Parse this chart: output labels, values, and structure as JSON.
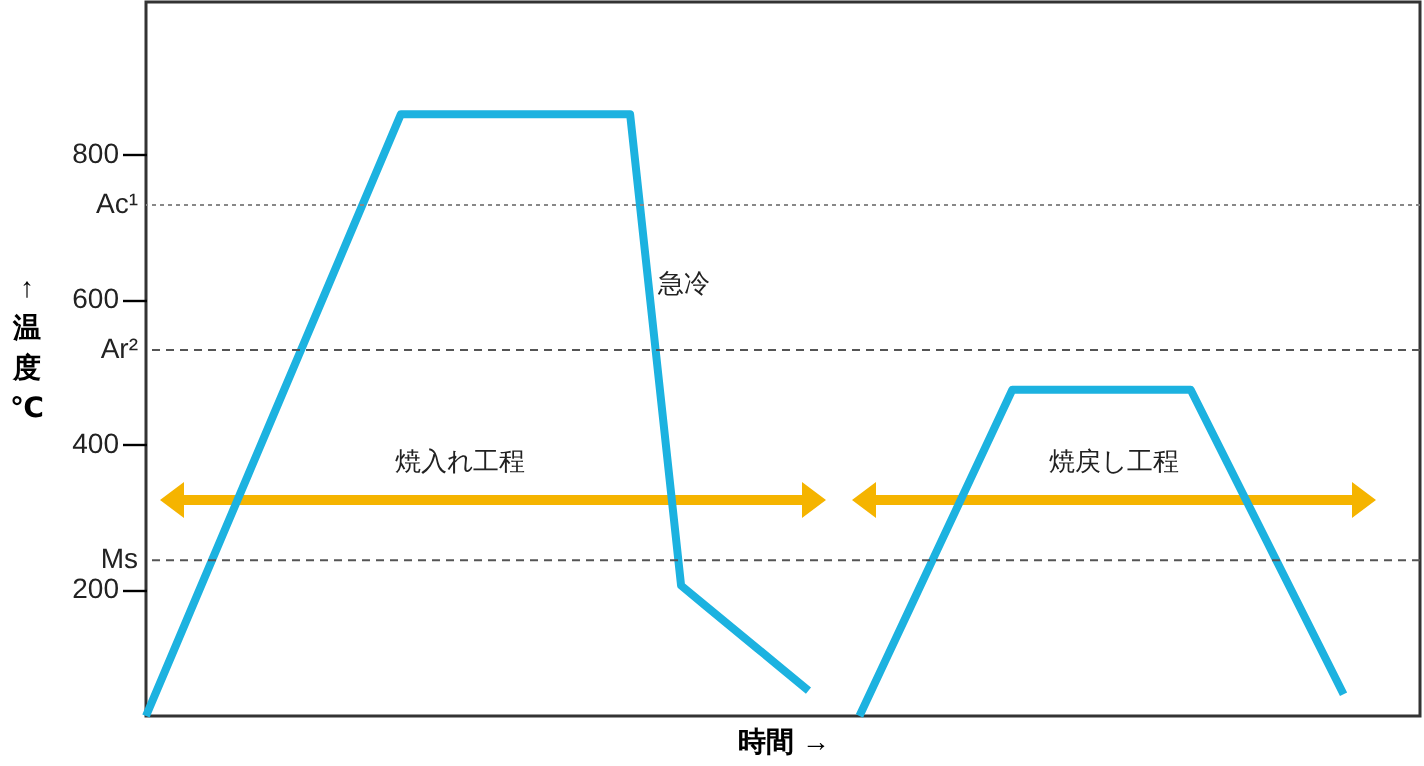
{
  "chart_data": {
    "type": "line",
    "xlabel": "時間 →",
    "ylabel": "↑温度℃",
    "categories": [
      null,
      null,
      null,
      null,
      null,
      null,
      null,
      null,
      null,
      null,
      null,
      null,
      null,
      null,
      null,
      null,
      null,
      null,
      null,
      null,
      null,
      null,
      null,
      null,
      null,
      null,
      null,
      null,
      null,
      null,
      null,
      null,
      null,
      null,
      null,
      null,
      null,
      null,
      null,
      null,
      null,
      null,
      null,
      null,
      null,
      null,
      null,
      null,
      null,
      null,
      null
    ],
    "ylim": [
      25,
      1010
    ],
    "yticks": [
      200,
      400,
      600,
      800
    ],
    "tick_labels": "y",
    "grid": false,
    "marker": "none",
    "line_style": "solid",
    "series": [
      {
        "color": "#1cb2e0",
        "values": [
          25,
          108,
          191,
          274,
          357,
          440,
          523,
          606,
          689,
          772,
          855,
          855,
          855,
          855,
          855,
          855,
          855,
          855,
          855,
          855,
          530,
          205,
          176,
          147,
          118,
          89,
          60,
          null,
          null,
          null,
          null,
          null,
          null,
          null,
          null,
          null,
          null,
          null,
          null,
          null,
          null,
          null,
          null,
          null,
          null,
          null,
          null,
          null,
          null,
          null,
          null
        ]
      },
      {
        "color": "#1cb2e0",
        "values": [
          null,
          null,
          null,
          null,
          null,
          null,
          null,
          null,
          null,
          null,
          null,
          null,
          null,
          null,
          null,
          null,
          null,
          null,
          null,
          null,
          null,
          null,
          null,
          null,
          null,
          null,
          null,
          null,
          25,
          100,
          175,
          250,
          null,
          400,
          475,
          475,
          475,
          475,
          475,
          475,
          475,
          475,
          405,
          335,
          265,
          195,
          125,
          55,
          null,
          null,
          null
        ]
      }
    ],
    "ref_lines": [
      {
        "axis": "y",
        "value": 730,
        "label": "Ac¹",
        "color": "#888888",
        "line_style": "dotted"
      },
      {
        "axis": "y",
        "value": 530,
        "label": "Ar²",
        "color": "#555555",
        "line_style": "dashed"
      },
      {
        "axis": "y",
        "value": 240,
        "label": "Ms",
        "color": "#555555",
        "line_style": "dashed"
      }
    ],
    "annotations": [
      "急冷",
      "焼入れ工程",
      "焼戻し工程"
    ]
  }
}
